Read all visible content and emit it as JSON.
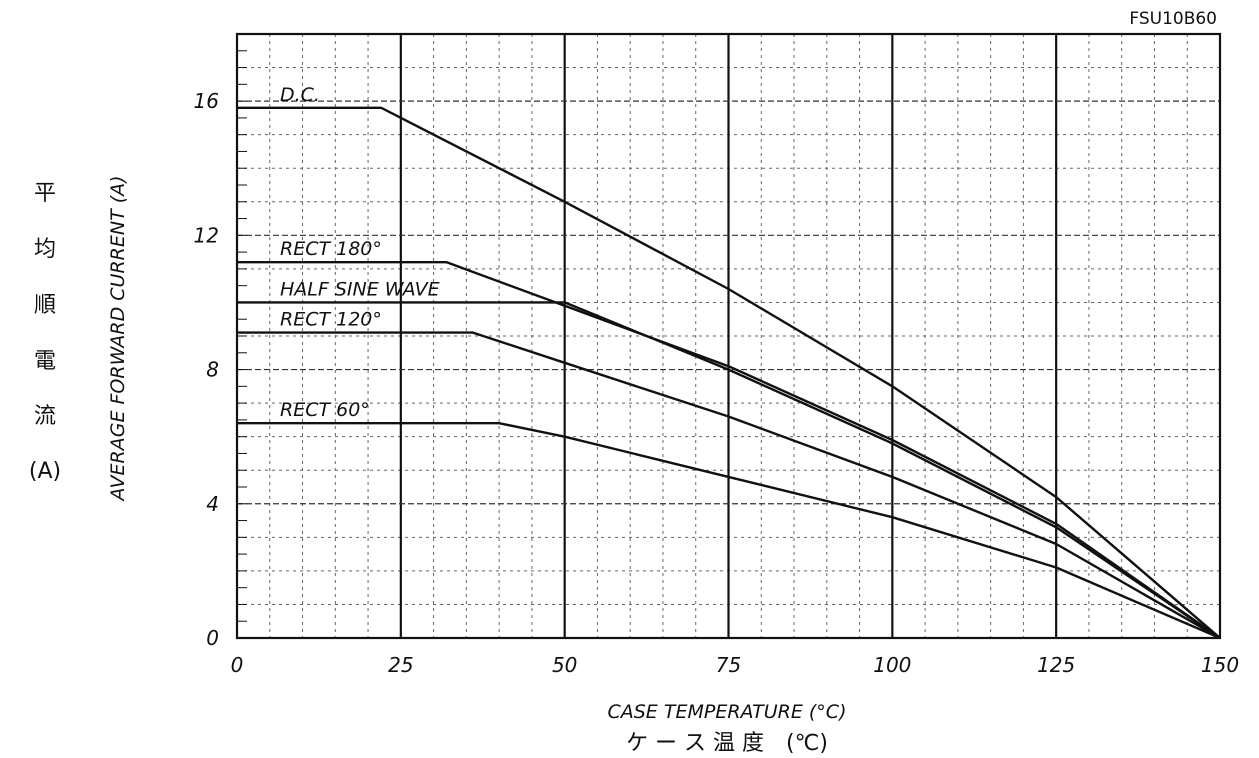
{
  "chart_data": {
    "type": "line",
    "title": "FSU10B60",
    "xlabel": "CASE TEMPERATURE (°C)",
    "xlabel_jp": "ケ ー ス 温 度　(℃)",
    "ylabel": "AVERAGE FORWARD CURRENT (A)",
    "ylabel_jp": [
      "平",
      "均",
      "順",
      "電",
      "流",
      "(A)"
    ],
    "xlim": [
      0,
      150
    ],
    "ylim": [
      0,
      18
    ],
    "x_ticks": [
      0,
      25,
      50,
      75,
      100,
      125,
      150
    ],
    "y_ticks": [
      0,
      4,
      8,
      12,
      16
    ],
    "grid": true,
    "legend": "none",
    "series": [
      {
        "name": "D.C.",
        "points": [
          [
            0,
            15.8
          ],
          [
            22,
            15.8
          ],
          [
            50,
            13.0
          ],
          [
            75,
            10.4
          ],
          [
            100,
            7.5
          ],
          [
            125,
            4.2
          ],
          [
            150,
            0
          ]
        ]
      },
      {
        "name": "RECT 180°",
        "points": [
          [
            0,
            11.2
          ],
          [
            32,
            11.2
          ],
          [
            50,
            9.9
          ],
          [
            75,
            8.1
          ],
          [
            100,
            5.9
          ],
          [
            125,
            3.4
          ],
          [
            150,
            0
          ]
        ]
      },
      {
        "name": "HALF SINE WAVE",
        "points": [
          [
            0,
            10.0
          ],
          [
            50,
            10.0
          ],
          [
            75,
            8.0
          ],
          [
            100,
            5.8
          ],
          [
            125,
            3.3
          ],
          [
            150,
            0
          ]
        ]
      },
      {
        "name": "RECT 120°",
        "points": [
          [
            0,
            9.1
          ],
          [
            36,
            9.1
          ],
          [
            50,
            8.2
          ],
          [
            75,
            6.6
          ],
          [
            100,
            4.8
          ],
          [
            125,
            2.8
          ],
          [
            150,
            0
          ]
        ]
      },
      {
        "name": "RECT 60°",
        "points": [
          [
            0,
            6.4
          ],
          [
            40,
            6.4
          ],
          [
            50,
            6.0
          ],
          [
            75,
            4.8
          ],
          [
            100,
            3.6
          ],
          [
            125,
            2.1
          ],
          [
            150,
            0
          ]
        ]
      }
    ]
  }
}
